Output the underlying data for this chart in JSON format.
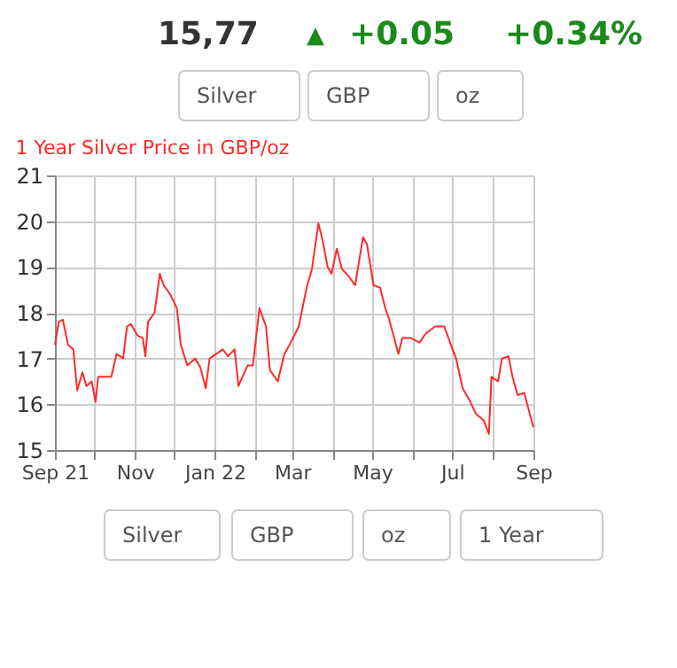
{
  "chart_data": {
    "type": "line",
    "title": "1 Year Silver Price in GBP/oz",
    "x": [
      "2021-09-01",
      "2021-09-04",
      "2021-09-07",
      "2021-09-11",
      "2021-09-15",
      "2021-09-18",
      "2021-09-22",
      "2021-09-25",
      "2021-09-29",
      "2021-10-02",
      "2021-10-04",
      "2021-10-14",
      "2021-10-18",
      "2021-10-23",
      "2021-10-26",
      "2021-10-29",
      "2021-11-03",
      "2021-11-07",
      "2021-11-09",
      "2021-11-11",
      "2021-11-16",
      "2021-11-20",
      "2021-11-23",
      "2021-11-28",
      "2021-12-03",
      "2021-12-06",
      "2021-12-11",
      "2021-12-17",
      "2021-12-21",
      "2021-12-25",
      "2021-12-28",
      "2022-01-07",
      "2022-01-11",
      "2022-01-16",
      "2022-01-19",
      "2022-01-26",
      "2022-01-30",
      "2022-02-04",
      "2022-02-09",
      "2022-02-12",
      "2022-02-18",
      "2022-02-23",
      "2022-02-27",
      "2022-03-06",
      "2022-03-12",
      "2022-03-16",
      "2022-03-21",
      "2022-03-24",
      "2022-03-28",
      "2022-03-31",
      "2022-04-04",
      "2022-04-08",
      "2022-04-13",
      "2022-04-18",
      "2022-04-24",
      "2022-04-27",
      "2022-05-02",
      "2022-05-07",
      "2022-05-11",
      "2022-05-14",
      "2022-05-21",
      "2022-05-24",
      "2022-05-30",
      "2022-06-06",
      "2022-06-11",
      "2022-06-18",
      "2022-06-25",
      "2022-06-30",
      "2022-07-04",
      "2022-07-09",
      "2022-07-14",
      "2022-07-19",
      "2022-07-25",
      "2022-07-29",
      "2022-07-31",
      "2022-08-05",
      "2022-08-08",
      "2022-08-13",
      "2022-08-16",
      "2022-08-20",
      "2022-08-25",
      "2022-08-30",
      "2022-09-01"
    ],
    "series": [
      {
        "color": "#ff2a2a",
        "values": [
          17.3,
          17.8,
          17.85,
          17.3,
          17.2,
          16.3,
          16.7,
          16.4,
          16.5,
          16.05,
          16.6,
          16.6,
          17.1,
          17.0,
          17.7,
          17.75,
          17.5,
          17.45,
          17.05,
          17.8,
          18.0,
          18.85,
          18.6,
          18.4,
          18.1,
          17.3,
          16.85,
          17.0,
          16.8,
          16.35,
          17.0,
          17.2,
          17.05,
          17.2,
          16.4,
          16.85,
          16.85,
          18.1,
          17.7,
          16.75,
          16.5,
          17.1,
          17.3,
          17.7,
          18.55,
          18.95,
          19.95,
          19.6,
          19.0,
          18.85,
          19.4,
          18.95,
          18.8,
          18.6,
          19.65,
          19.5,
          18.6,
          18.55,
          18.1,
          17.85,
          17.1,
          17.45,
          17.45,
          17.35,
          17.55,
          17.7,
          17.7,
          17.3,
          17.0,
          16.35,
          16.1,
          15.8,
          15.65,
          15.35,
          16.6,
          16.5,
          17.0,
          17.05,
          16.6,
          16.2,
          16.25,
          15.7,
          15.5
        ]
      }
    ],
    "xlim": [
      "2021-09-01",
      "2022-09-01"
    ],
    "xticks": [
      {
        "value": "2021-09-01",
        "label": "Sep 21"
      },
      {
        "value": "2021-10-01",
        "label": null
      },
      {
        "value": "2021-11-01",
        "label": "Nov"
      },
      {
        "value": "2021-12-01",
        "label": null
      },
      {
        "value": "2022-01-01",
        "label": "Jan 22"
      },
      {
        "value": "2022-02-01",
        "label": null
      },
      {
        "value": "2022-03-01",
        "label": "Mar"
      },
      {
        "value": "2022-04-01",
        "label": null
      },
      {
        "value": "2022-05-01",
        "label": "May"
      },
      {
        "value": "2022-06-01",
        "label": null
      },
      {
        "value": "2022-07-01",
        "label": "Jul"
      },
      {
        "value": "2022-08-01",
        "label": null
      },
      {
        "value": "2022-09-01",
        "label": "Sep"
      }
    ],
    "ylim": [
      15,
      21
    ],
    "yticks": [
      15,
      16,
      17,
      18,
      19,
      20,
      21
    ],
    "grid": true,
    "legend": false,
    "annotations": [
      "15,77",
      "▲",
      "+0.05",
      "+0.34%",
      "Silver",
      "GBP",
      "oz",
      "Silver",
      "GBP",
      "oz",
      "1 Year"
    ]
  }
}
